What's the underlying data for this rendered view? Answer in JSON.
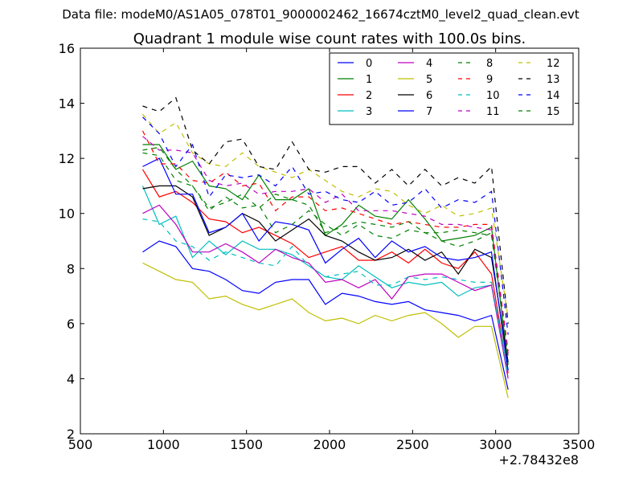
{
  "header": {
    "data_file": "Data file: modeM0/AS1A05_078T01_9000002462_16674cztM0_level2_quad_clean.evt"
  },
  "chart_data": {
    "type": "line",
    "title": "Quadrant 1 module wise count rates with 100.0s bins.",
    "xlabel": "",
    "ylabel": "",
    "x_offset_label": "+2.78432e8",
    "xlim": [
      500,
      3500
    ],
    "ylim": [
      2,
      16
    ],
    "xticks": [
      "500",
      "1000",
      "1500",
      "2000",
      "2500",
      "3000",
      "3500"
    ],
    "yticks": [
      "2",
      "4",
      "6",
      "8",
      "10",
      "12",
      "14",
      "16"
    ],
    "legend_position": "top-right",
    "x": [
      875,
      975,
      1075,
      1175,
      1275,
      1375,
      1475,
      1575,
      1675,
      1775,
      1875,
      1975,
      2075,
      2175,
      2275,
      2375,
      2475,
      2575,
      2675,
      2775,
      2875,
      2975,
      3075
    ],
    "series": [
      {
        "name": "0",
        "color": "#0000ff",
        "dash": "solid",
        "values": [
          8.6,
          9.0,
          8.8,
          8.0,
          7.9,
          7.6,
          7.2,
          7.1,
          7.5,
          7.6,
          7.6,
          6.7,
          7.1,
          7.0,
          6.8,
          6.7,
          6.8,
          6.5,
          6.4,
          6.3,
          6.1,
          6.3,
          3.6
        ]
      },
      {
        "name": "1",
        "color": "#008000",
        "dash": "solid",
        "values": [
          12.5,
          12.5,
          11.6,
          11.9,
          11.0,
          10.9,
          10.5,
          11.4,
          10.5,
          10.5,
          10.9,
          9.2,
          9.6,
          10.3,
          9.9,
          9.8,
          10.5,
          9.8,
          9.0,
          9.1,
          9.2,
          9.5,
          4.5
        ]
      },
      {
        "name": "2",
        "color": "#ff0000",
        "dash": "solid",
        "values": [
          11.6,
          10.6,
          10.8,
          10.4,
          9.8,
          9.7,
          9.3,
          9.5,
          9.2,
          8.9,
          8.4,
          8.6,
          8.8,
          8.3,
          8.3,
          8.6,
          8.2,
          8.7,
          8.2,
          8.0,
          8.6,
          7.8,
          4.2
        ]
      },
      {
        "name": "3",
        "color": "#00bfbf",
        "dash": "solid",
        "values": [
          11.0,
          9.6,
          9.9,
          8.4,
          9.0,
          8.5,
          9.0,
          8.7,
          8.7,
          8.5,
          8.1,
          7.7,
          7.6,
          8.1,
          7.7,
          7.3,
          7.5,
          7.4,
          7.5,
          7.0,
          7.3,
          7.4,
          4.3
        ]
      },
      {
        "name": "4",
        "color": "#bf00bf",
        "dash": "solid",
        "values": [
          10.0,
          10.3,
          9.6,
          8.6,
          8.6,
          8.9,
          8.6,
          8.2,
          8.7,
          8.4,
          8.2,
          7.5,
          7.6,
          7.3,
          7.6,
          6.9,
          7.7,
          7.8,
          7.8,
          7.5,
          7.2,
          7.4,
          4.0
        ]
      },
      {
        "name": "5",
        "color": "#bfbf00",
        "dash": "solid",
        "values": [
          8.2,
          7.9,
          7.6,
          7.5,
          6.9,
          7.0,
          6.7,
          6.5,
          6.7,
          6.9,
          6.4,
          6.1,
          6.2,
          6.0,
          6.3,
          6.1,
          6.3,
          6.4,
          6.0,
          5.5,
          5.9,
          5.9,
          3.3
        ]
      },
      {
        "name": "6",
        "color": "#000000",
        "dash": "solid",
        "values": [
          10.9,
          11.0,
          11.0,
          10.6,
          9.2,
          9.5,
          10.0,
          9.7,
          9.0,
          9.4,
          9.8,
          9.2,
          9.0,
          8.6,
          8.3,
          8.4,
          8.7,
          8.3,
          8.6,
          7.8,
          8.7,
          8.4,
          4.6
        ]
      },
      {
        "name": "7",
        "color": "#0000ff",
        "dash": "solid",
        "values": [
          11.7,
          12.0,
          10.7,
          10.7,
          9.3,
          9.5,
          10.0,
          9.0,
          9.7,
          9.6,
          9.4,
          8.2,
          8.7,
          9.1,
          8.4,
          9.0,
          8.6,
          8.8,
          8.4,
          8.3,
          8.4,
          8.6,
          4.3
        ]
      },
      {
        "name": "8",
        "color": "#008000",
        "dash": "dashed",
        "values": [
          12.2,
          12.1,
          11.2,
          11.0,
          10.1,
          10.6,
          10.2,
          10.3,
          9.3,
          9.6,
          10.1,
          9.6,
          9.2,
          9.6,
          9.2,
          9.1,
          9.4,
          9.3,
          9.0,
          8.8,
          9.0,
          9.3,
          4.8
        ]
      },
      {
        "name": "9",
        "color": "#ff0000",
        "dash": "dashed",
        "values": [
          13.0,
          11.8,
          11.8,
          11.2,
          11.1,
          11.5,
          11.0,
          11.1,
          10.1,
          10.6,
          10.6,
          10.1,
          10.2,
          10.0,
          9.8,
          9.6,
          9.7,
          9.6,
          9.5,
          9.5,
          9.6,
          9.6,
          5.0
        ]
      },
      {
        "name": "10",
        "color": "#00bfbf",
        "dash": "dashed",
        "values": [
          9.8,
          9.7,
          9.0,
          8.8,
          8.3,
          8.6,
          8.4,
          8.2,
          8.1,
          8.8,
          8.1,
          7.7,
          7.8,
          7.9,
          7.4,
          7.4,
          7.7,
          7.6,
          7.7,
          7.6,
          7.5,
          7.5,
          4.1
        ]
      },
      {
        "name": "11",
        "color": "#bf00bf",
        "dash": "dashed",
        "values": [
          12.8,
          12.3,
          12.3,
          12.2,
          11.2,
          11.0,
          11.1,
          10.7,
          10.8,
          10.8,
          10.9,
          10.4,
          10.7,
          10.1,
          10.1,
          10.1,
          10.0,
          9.9,
          9.6,
          9.6,
          9.5,
          9.4,
          4.9
        ]
      },
      {
        "name": "12",
        "color": "#bfbf00",
        "dash": "dashed",
        "values": [
          13.6,
          12.9,
          13.3,
          12.2,
          11.8,
          11.7,
          12.2,
          11.7,
          11.5,
          11.3,
          11.6,
          11.2,
          10.8,
          10.6,
          10.9,
          10.8,
          10.3,
          10.0,
          10.3,
          9.9,
          10.0,
          10.2,
          6.2
        ]
      },
      {
        "name": "13",
        "color": "#000000",
        "dash": "dashed",
        "values": [
          13.9,
          13.7,
          14.2,
          12.3,
          11.8,
          12.6,
          12.7,
          11.7,
          11.6,
          12.6,
          11.6,
          11.5,
          11.7,
          11.7,
          11.1,
          11.6,
          11.0,
          11.6,
          11.0,
          11.3,
          11.1,
          11.7,
          6.0
        ]
      },
      {
        "name": "14",
        "color": "#0000ff",
        "dash": "dashed",
        "values": [
          13.5,
          12.9,
          11.7,
          12.5,
          10.6,
          11.4,
          11.3,
          11.4,
          11.0,
          11.7,
          10.7,
          10.8,
          10.5,
          10.4,
          10.8,
          10.3,
          10.4,
          10.9,
          10.2,
          10.5,
          10.4,
          10.8,
          5.6
        ]
      },
      {
        "name": "15",
        "color": "#008000",
        "dash": "dashed",
        "values": [
          12.3,
          12.4,
          11.6,
          11.0,
          10.2,
          10.4,
          10.7,
          10.2,
          10.7,
          10.5,
          10.3,
          9.3,
          9.5,
          9.7,
          9.6,
          9.5,
          9.7,
          9.3,
          9.3,
          9.4,
          9.3,
          9.2,
          4.7
        ]
      }
    ]
  }
}
